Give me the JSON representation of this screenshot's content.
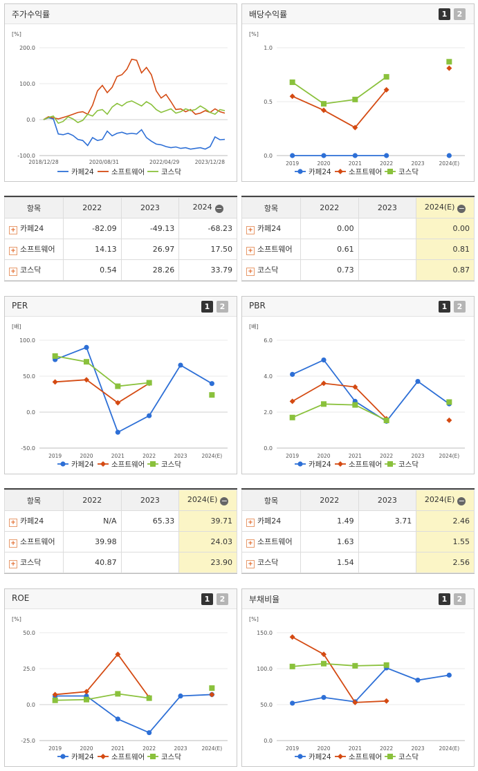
{
  "panels": {
    "stock": {
      "title": "주가수익률"
    },
    "dividend": {
      "title": "배당수익률",
      "btn1": "1",
      "btn2": "2"
    },
    "per": {
      "title": "PER",
      "btn1": "1",
      "btn2": "2"
    },
    "pbr": {
      "title": "PBR",
      "btn1": "1",
      "btn2": "2"
    },
    "roe": {
      "title": "ROE",
      "btn1": "1",
      "btn2": "2"
    },
    "debt": {
      "title": "부채비율",
      "btn1": "1",
      "btn2": "2"
    }
  },
  "colors": {
    "cafe24": "#2d6fd6",
    "software": "#d44a12",
    "kosdaq": "#8ac13c"
  },
  "legend": [
    "카페24",
    "소프트웨어",
    "코스닥"
  ],
  "chart_data": [
    {
      "id": "stock",
      "type": "line",
      "unit": "[%]",
      "ylim": [
        -100,
        200
      ],
      "yticks": [
        "200.0",
        "100.0",
        "0.0",
        "-100.0"
      ],
      "xticks": [
        "2018/12/28",
        "2020/08/31",
        "2022/04/29",
        "2023/12/28"
      ],
      "series": [
        {
          "name": "카페24",
          "values": [
            0,
            5,
            2,
            -40,
            -42,
            -38,
            -44,
            -55,
            -58,
            -72,
            -50,
            -58,
            -55,
            -32,
            -45,
            -38,
            -35,
            -40,
            -38,
            -40,
            -28,
            -50,
            -60,
            -68,
            -70,
            -75,
            -78,
            -76,
            -80,
            -78,
            -82,
            -80,
            -78,
            -82,
            -75,
            -48,
            -56,
            -55
          ]
        },
        {
          "name": "소프트웨어",
          "values": [
            0,
            8,
            5,
            2,
            6,
            10,
            15,
            20,
            22,
            15,
            40,
            80,
            95,
            75,
            90,
            120,
            125,
            140,
            168,
            165,
            130,
            145,
            125,
            80,
            60,
            70,
            50,
            28,
            30,
            22,
            28,
            15,
            18,
            25,
            20,
            30,
            22,
            18
          ]
        },
        {
          "name": "코스닥",
          "values": [
            0,
            6,
            10,
            -10,
            -5,
            8,
            2,
            -8,
            -2,
            15,
            10,
            25,
            28,
            15,
            35,
            45,
            38,
            48,
            52,
            45,
            38,
            50,
            42,
            28,
            20,
            25,
            30,
            18,
            22,
            30,
            25,
            28,
            38,
            30,
            20,
            15,
            28,
            25
          ]
        }
      ]
    },
    {
      "id": "dividend",
      "type": "line",
      "unit": "[%]",
      "ylim": [
        0,
        1
      ],
      "yticks": [
        "1.0",
        "0.5",
        "0.0"
      ],
      "xticks": [
        "2019",
        "2020",
        "2021",
        "2022",
        "2023",
        "2024(E)"
      ],
      "series": [
        {
          "name": "카페24",
          "values": [
            0,
            0,
            0,
            0,
            null,
            0
          ]
        },
        {
          "name": "소프트웨어",
          "values": [
            0.55,
            0.42,
            0.26,
            0.61,
            null,
            0.81
          ]
        },
        {
          "name": "코스닥",
          "values": [
            0.68,
            0.48,
            0.52,
            0.73,
            null,
            0.87
          ]
        }
      ]
    },
    {
      "id": "per",
      "type": "line",
      "unit": "[배]",
      "ylim": [
        -50,
        100
      ],
      "yticks": [
        "100.0",
        "50.0",
        "0.0",
        "-50.0"
      ],
      "xticks": [
        "2019",
        "2020",
        "2021",
        "2022",
        "2023",
        "2024(E)"
      ],
      "series": [
        {
          "name": "카페24",
          "values": [
            73,
            90,
            -28,
            -5,
            65.33,
            39.71
          ]
        },
        {
          "name": "소프트웨어",
          "values": [
            42,
            45,
            13,
            39.98,
            null,
            24.03
          ]
        },
        {
          "name": "코스닥",
          "values": [
            78,
            70,
            36,
            40.87,
            null,
            23.9
          ]
        }
      ]
    },
    {
      "id": "pbr",
      "type": "line",
      "unit": "[배]",
      "ylim": [
        0,
        6
      ],
      "yticks": [
        "6.0",
        "4.0",
        "2.0",
        "0.0"
      ],
      "xticks": [
        "2019",
        "2020",
        "2021",
        "2022",
        "2023",
        "2024(E)"
      ],
      "series": [
        {
          "name": "카페24",
          "values": [
            4.1,
            4.9,
            2.6,
            1.49,
            3.71,
            2.46
          ]
        },
        {
          "name": "소프트웨어",
          "values": [
            2.6,
            3.6,
            3.4,
            1.63,
            null,
            1.55
          ]
        },
        {
          "name": "코스닥",
          "values": [
            1.7,
            2.45,
            2.4,
            1.54,
            null,
            2.56
          ]
        }
      ]
    },
    {
      "id": "roe",
      "type": "line",
      "unit": "[%]",
      "ylim": [
        -25,
        50
      ],
      "yticks": [
        "50.0",
        "25.0",
        "0.0",
        "-25.0"
      ],
      "xticks": [
        "2019",
        "2020",
        "2021",
        "2022",
        "2023",
        "2024(E)"
      ],
      "series": [
        {
          "name": "카페24",
          "values": [
            6,
            6,
            -10,
            -19.5,
            6,
            7
          ]
        },
        {
          "name": "소프트웨어",
          "values": [
            7,
            9,
            35,
            5,
            null,
            7
          ]
        },
        {
          "name": "코스닥",
          "values": [
            3,
            3.5,
            7.5,
            4.5,
            null,
            11.5
          ]
        }
      ]
    },
    {
      "id": "debt",
      "type": "line",
      "unit": "[%]",
      "ylim": [
        0,
        150
      ],
      "yticks": [
        "150.0",
        "100.0",
        "50.0",
        "0.0"
      ],
      "xticks": [
        "2019",
        "2020",
        "2021",
        "2022",
        "2023",
        "2024(E)"
      ],
      "series": [
        {
          "name": "카페24",
          "values": [
            52,
            60,
            54,
            101,
            84,
            91
          ]
        },
        {
          "name": "소프트웨어",
          "values": [
            144,
            120,
            53,
            55,
            null,
            null
          ]
        },
        {
          "name": "코스닥",
          "values": [
            103,
            107,
            104,
            105,
            null,
            null
          ]
        }
      ]
    }
  ],
  "tables": {
    "stock": {
      "headers": [
        "항목",
        "2022",
        "2023",
        "2024"
      ],
      "rows": [
        {
          "name": "카페24",
          "v": [
            "-82.09",
            "-49.13",
            "-68.23"
          ]
        },
        {
          "name": "소프트웨어",
          "v": [
            "14.13",
            "26.97",
            "17.50"
          ]
        },
        {
          "name": "코스닥",
          "v": [
            "0.54",
            "28.26",
            "33.79"
          ]
        }
      ]
    },
    "dividend": {
      "headers": [
        "항목",
        "2022",
        "2023",
        "2024(E)"
      ],
      "rows": [
        {
          "name": "카페24",
          "v": [
            "0.00",
            "",
            "0.00"
          ]
        },
        {
          "name": "소프트웨어",
          "v": [
            "0.61",
            "",
            "0.81"
          ]
        },
        {
          "name": "코스닥",
          "v": [
            "0.73",
            "",
            "0.87"
          ]
        }
      ]
    },
    "per": {
      "headers": [
        "항목",
        "2022",
        "2023",
        "2024(E)"
      ],
      "rows": [
        {
          "name": "카페24",
          "v": [
            "N/A",
            "65.33",
            "39.71"
          ]
        },
        {
          "name": "소프트웨어",
          "v": [
            "39.98",
            "",
            "24.03"
          ]
        },
        {
          "name": "코스닥",
          "v": [
            "40.87",
            "",
            "23.90"
          ]
        }
      ]
    },
    "pbr": {
      "headers": [
        "항목",
        "2022",
        "2023",
        "2024(E)"
      ],
      "rows": [
        {
          "name": "카페24",
          "v": [
            "1.49",
            "3.71",
            "2.46"
          ]
        },
        {
          "name": "소프트웨어",
          "v": [
            "1.63",
            "",
            "1.55"
          ]
        },
        {
          "name": "코스닥",
          "v": [
            "1.54",
            "",
            "2.56"
          ]
        }
      ]
    }
  }
}
